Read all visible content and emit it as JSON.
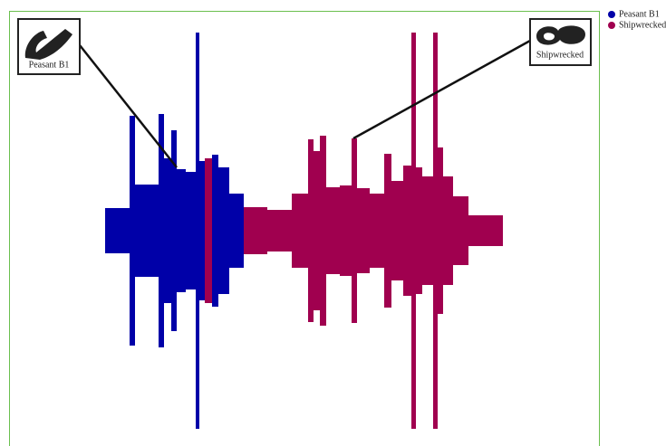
{
  "chart_data": {
    "type": "mirrored-bar",
    "series": [
      {
        "name": "Peasant B1",
        "color": "#0000a8",
        "bins": [
          116,
          143,
          149,
          175,
          181,
          189,
          195,
          205,
          216,
          220,
          226,
          234,
          241,
          253,
          269
        ],
        "values": [
          25,
          127,
          51,
          129,
          80,
          111,
          68,
          65,
          219,
          77,
          null,
          84,
          70,
          41
        ]
      },
      {
        "name": "Shipwrecked",
        "color": "#a0004f",
        "bins": [
          226,
          234,
          269,
          295,
          322,
          340,
          346,
          353,
          360,
          375,
          388,
          394,
          408,
          424,
          432,
          445,
          454,
          459,
          466,
          478,
          483,
          489,
          500,
          517,
          555
        ],
        "values": [
          80,
          null,
          26,
          23,
          41,
          101,
          88,
          105,
          48,
          50,
          102,
          47,
          41,
          85,
          55,
          72,
          219,
          70,
          60,
          219,
          92,
          60,
          38,
          17
        ]
      }
    ],
    "annotations": [
      {
        "text": "Peasant B1"
      },
      {
        "text": "Shipwrecked"
      }
    ],
    "legend": "top-right"
  }
}
